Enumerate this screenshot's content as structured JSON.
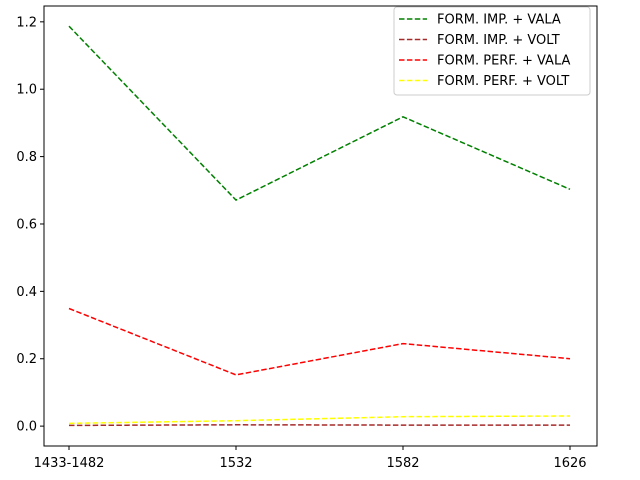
{
  "chart_data": {
    "type": "line",
    "title": "",
    "xlabel": "",
    "ylabel": "",
    "categories": [
      "1433-1482",
      "1532",
      "1582",
      "1626"
    ],
    "ylim": [
      -0.059,
      1.247
    ],
    "yticks": [
      0.0,
      0.2,
      0.4,
      0.6,
      0.8,
      1.0,
      1.2
    ],
    "ytick_labels": [
      "0.0",
      "0.2",
      "0.4",
      "0.6",
      "0.8",
      "1.0",
      "1.2"
    ],
    "grid": false,
    "legend_position": "top-right",
    "line_style": "dashed",
    "series": [
      {
        "name": "FORM. IMP. + VALA",
        "color": "#008000",
        "values": [
          1.187,
          0.671,
          0.918,
          0.703
        ]
      },
      {
        "name": "FORM. IMP. + VOLT",
        "color": "#a52a2a",
        "values": [
          0.002,
          0.004,
          0.003,
          0.003
        ]
      },
      {
        "name": "FORM. PERF. + VALA",
        "color": "#ff0000",
        "values": [
          0.349,
          0.152,
          0.245,
          0.2
        ]
      },
      {
        "name": "FORM. PERF. + VOLT",
        "color": "#ffff00",
        "values": [
          0.008,
          0.016,
          0.028,
          0.03
        ]
      }
    ]
  }
}
